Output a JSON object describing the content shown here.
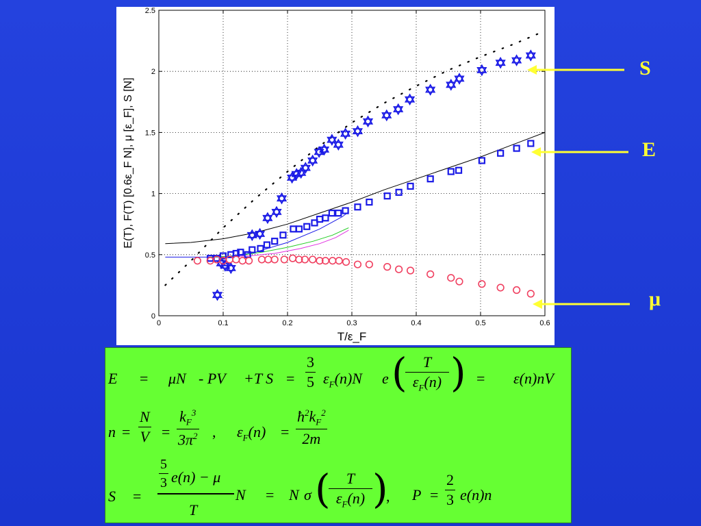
{
  "chart_data": {
    "type": "scatter",
    "xlabel": "T/ε_F",
    "ylabel": "E(T), F(T) [0.6ε_F N], μ [ε_F], S [N]",
    "xlim": [
      0,
      0.6
    ],
    "ylim": [
      0,
      2.5
    ],
    "x_ticks": [
      "0",
      "0.1",
      "0.2",
      "0.3",
      "0.4",
      "0.5",
      "0.6"
    ],
    "y_ticks": [
      "0",
      "0.5",
      "1",
      "1.5",
      "2",
      "2.5"
    ],
    "grid": true,
    "series": [
      {
        "name": "S",
        "marker": "hexagram",
        "color": "#1a1ae6",
        "points": [
          [
            0.091,
            0.17
          ],
          [
            0.097,
            0.43
          ],
          [
            0.103,
            0.41
          ],
          [
            0.112,
            0.39
          ],
          [
            0.145,
            0.66
          ],
          [
            0.157,
            0.67
          ],
          [
            0.169,
            0.8
          ],
          [
            0.183,
            0.85
          ],
          [
            0.191,
            0.96
          ],
          [
            0.207,
            1.13
          ],
          [
            0.214,
            1.16
          ],
          [
            0.221,
            1.17
          ],
          [
            0.228,
            1.21
          ],
          [
            0.239,
            1.27
          ],
          [
            0.249,
            1.34
          ],
          [
            0.257,
            1.36
          ],
          [
            0.269,
            1.44
          ],
          [
            0.279,
            1.4
          ],
          [
            0.29,
            1.49
          ],
          [
            0.309,
            1.51
          ],
          [
            0.325,
            1.59
          ],
          [
            0.354,
            1.64
          ],
          [
            0.372,
            1.69
          ],
          [
            0.39,
            1.77
          ],
          [
            0.422,
            1.85
          ],
          [
            0.454,
            1.89
          ],
          [
            0.467,
            1.94
          ],
          [
            0.502,
            2.01
          ],
          [
            0.531,
            2.07
          ],
          [
            0.556,
            2.09
          ],
          [
            0.578,
            2.13
          ]
        ]
      },
      {
        "name": "E",
        "marker": "square",
        "color": "#1a1ae6",
        "points": [
          [
            0.08,
            0.47
          ],
          [
            0.09,
            0.47
          ],
          [
            0.1,
            0.49
          ],
          [
            0.112,
            0.5
          ],
          [
            0.12,
            0.51
          ],
          [
            0.127,
            0.52
          ],
          [
            0.138,
            0.5
          ],
          [
            0.145,
            0.54
          ],
          [
            0.158,
            0.55
          ],
          [
            0.168,
            0.58
          ],
          [
            0.18,
            0.61
          ],
          [
            0.193,
            0.66
          ],
          [
            0.209,
            0.71
          ],
          [
            0.218,
            0.71
          ],
          [
            0.23,
            0.73
          ],
          [
            0.242,
            0.76
          ],
          [
            0.25,
            0.79
          ],
          [
            0.259,
            0.8
          ],
          [
            0.269,
            0.84
          ],
          [
            0.279,
            0.84
          ],
          [
            0.29,
            0.86
          ],
          [
            0.309,
            0.89
          ],
          [
            0.327,
            0.93
          ],
          [
            0.355,
            0.98
          ],
          [
            0.373,
            1.01
          ],
          [
            0.391,
            1.06
          ],
          [
            0.422,
            1.12
          ],
          [
            0.454,
            1.18
          ],
          [
            0.466,
            1.19
          ],
          [
            0.502,
            1.27
          ],
          [
            0.531,
            1.33
          ],
          [
            0.556,
            1.37
          ],
          [
            0.578,
            1.41
          ]
        ]
      },
      {
        "name": "μ",
        "marker": "circle",
        "color": "#f04060",
        "points": [
          [
            0.06,
            0.45
          ],
          [
            0.08,
            0.45
          ],
          [
            0.09,
            0.46
          ],
          [
            0.1,
            0.45
          ],
          [
            0.11,
            0.46
          ],
          [
            0.12,
            0.46
          ],
          [
            0.13,
            0.45
          ],
          [
            0.14,
            0.45
          ],
          [
            0.16,
            0.46
          ],
          [
            0.17,
            0.46
          ],
          [
            0.18,
            0.46
          ],
          [
            0.195,
            0.46
          ],
          [
            0.208,
            0.47
          ],
          [
            0.218,
            0.46
          ],
          [
            0.227,
            0.46
          ],
          [
            0.239,
            0.46
          ],
          [
            0.25,
            0.45
          ],
          [
            0.259,
            0.45
          ],
          [
            0.27,
            0.45
          ],
          [
            0.28,
            0.45
          ],
          [
            0.291,
            0.44
          ],
          [
            0.309,
            0.42
          ],
          [
            0.327,
            0.42
          ],
          [
            0.355,
            0.4
          ],
          [
            0.373,
            0.38
          ],
          [
            0.391,
            0.37
          ],
          [
            0.422,
            0.34
          ],
          [
            0.454,
            0.31
          ],
          [
            0.467,
            0.28
          ],
          [
            0.502,
            0.26
          ],
          [
            0.531,
            0.23
          ],
          [
            0.556,
            0.21
          ],
          [
            0.578,
            0.18
          ]
        ]
      }
    ],
    "curves": [
      {
        "style": "dotted",
        "color": "#000000",
        "points": [
          [
            0.01,
            0.25
          ],
          [
            0.05,
            0.45
          ],
          [
            0.1,
            0.72
          ],
          [
            0.15,
            0.96
          ],
          [
            0.2,
            1.18
          ],
          [
            0.25,
            1.39
          ],
          [
            0.3,
            1.58
          ],
          [
            0.35,
            1.74
          ],
          [
            0.4,
            1.88
          ],
          [
            0.45,
            2.01
          ],
          [
            0.5,
            2.12
          ],
          [
            0.55,
            2.22
          ],
          [
            0.595,
            2.32
          ]
        ]
      },
      {
        "style": "solid",
        "color": "#000000",
        "points": [
          [
            0.01,
            0.59
          ],
          [
            0.05,
            0.6
          ],
          [
            0.1,
            0.63
          ],
          [
            0.15,
            0.68
          ],
          [
            0.2,
            0.75
          ],
          [
            0.25,
            0.84
          ],
          [
            0.3,
            0.93
          ],
          [
            0.35,
            1.03
          ],
          [
            0.4,
            1.12
          ],
          [
            0.45,
            1.21
          ],
          [
            0.5,
            1.3
          ],
          [
            0.55,
            1.4
          ],
          [
            0.6,
            1.5
          ]
        ]
      },
      {
        "style": "solid",
        "color": "#1a1ae6",
        "points": [
          [
            0.01,
            0.48
          ],
          [
            0.08,
            0.48
          ],
          [
            0.1,
            0.48
          ],
          [
            0.15,
            0.52
          ],
          [
            0.2,
            0.6
          ],
          [
            0.25,
            0.71
          ],
          [
            0.285,
            0.81
          ],
          [
            0.295,
            0.85
          ]
        ]
      },
      {
        "style": "solid",
        "color": "#22cc22",
        "points": [
          [
            0.08,
            0.48
          ],
          [
            0.12,
            0.49
          ],
          [
            0.16,
            0.52
          ],
          [
            0.2,
            0.56
          ],
          [
            0.24,
            0.61
          ],
          [
            0.27,
            0.66
          ],
          [
            0.295,
            0.72
          ]
        ]
      },
      {
        "style": "solid",
        "color": "#e030e0",
        "points": [
          [
            0.1,
            0.48
          ],
          [
            0.14,
            0.49
          ],
          [
            0.18,
            0.51
          ],
          [
            0.22,
            0.55
          ],
          [
            0.25,
            0.59
          ],
          [
            0.275,
            0.64
          ],
          [
            0.295,
            0.7
          ]
        ]
      }
    ]
  },
  "labels": {
    "S": "S",
    "E": "E",
    "mu": "μ",
    "arrow_color": "#ffff33"
  },
  "formulas": {
    "row1": {
      "left": "E",
      "eq1": "=",
      "term1": "μN",
      "term2": "- PV",
      "term3": "+T S",
      "eq2": "=",
      "frac_num": "3",
      "frac_den": "5",
      "eps": "ε",
      "eps_sub": "F",
      "eps_arg": "(n)N",
      "e": "e",
      "inner_num": "T",
      "inner_den_eps": "ε",
      "inner_den_sub": "F",
      "inner_den_arg": "(n)",
      "eq3": "=",
      "right": "ε(n)nV"
    },
    "row2": {
      "n": "n",
      "eq1": "=",
      "f1_num": "N",
      "f1_den": "V",
      "eq2": "=",
      "f2_num_k": "k",
      "f2_num_sub": "F",
      "f2_num_sup": "3",
      "f2_den": "3π",
      "f2_den_sup": "2",
      "comma": ",",
      "eps": "ε",
      "eps_sub": "F",
      "eps_arg": "(n)",
      "eq3": "=",
      "f3_num": "ħ",
      "f3_num_sup": "2",
      "f3_num_k": "k",
      "f3_num_sub": "F",
      "f3_num_sup2": "2",
      "f3_den": "2m"
    },
    "row3": {
      "S": "S",
      "eq1": "=",
      "big_num_frac_num": "5",
      "big_num_frac_den": "3",
      "big_num_rest": "e(n) − μ",
      "big_den": "T",
      "N1": "N",
      "eq2": "=",
      "N2": "N",
      "sigma": "σ",
      "inner_num": "T",
      "inner_den_eps": "ε",
      "inner_den_sub": "F",
      "inner_den_arg": "(n)",
      "comma": ",",
      "P": "P",
      "eq3": "=",
      "p_num": "2",
      "p_den": "3",
      "p_rest": "e(n)n"
    }
  }
}
